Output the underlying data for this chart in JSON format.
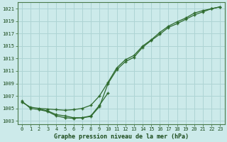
{
  "background_color": "#cceaea",
  "grid_color": "#aed4d4",
  "line_color": "#2d6a2d",
  "title": "Graphe pression niveau de la mer (hPa)",
  "x_labels": [
    "0",
    "1",
    "2",
    "3",
    "4",
    "5",
    "6",
    "7",
    "8",
    "9",
    "10",
    "11",
    "12",
    "13",
    "14",
    "15",
    "16",
    "17",
    "18",
    "19",
    "20",
    "21",
    "22",
    "23"
  ],
  "ylim": [
    1002.5,
    1022.0
  ],
  "yticks": [
    1003,
    1005,
    1007,
    1009,
    1011,
    1013,
    1015,
    1017,
    1019,
    1021
  ],
  "curve1": [
    1006.0,
    1005.2,
    1005.0,
    1004.9,
    1004.8,
    1004.7,
    1004.8,
    1005.0,
    1005.5,
    1007.0,
    1009.2,
    1011.5,
    1012.8,
    1013.5,
    1015.0,
    1016.0,
    1017.2,
    1018.2,
    1018.9,
    1019.5,
    1020.3,
    1020.7,
    1021.0,
    1021.3
  ],
  "curve2": [
    1006.2,
    1005.0,
    1004.8,
    1004.5,
    1003.8,
    1003.5,
    1003.4,
    1003.5,
    1003.7,
    1005.3,
    1009.0,
    1011.2,
    1012.5,
    1013.2,
    1014.8,
    1015.9,
    1016.9,
    1018.0,
    1018.6,
    1019.3,
    1020.0,
    1020.5,
    1021.0,
    1021.3
  ],
  "curve3_x": [
    2,
    3,
    4,
    5,
    6,
    7,
    8,
    9,
    10
  ],
  "curve3_y": [
    1004.9,
    1004.6,
    1004.0,
    1003.8,
    1003.5,
    1003.5,
    1003.8,
    1005.5,
    1007.5
  ]
}
